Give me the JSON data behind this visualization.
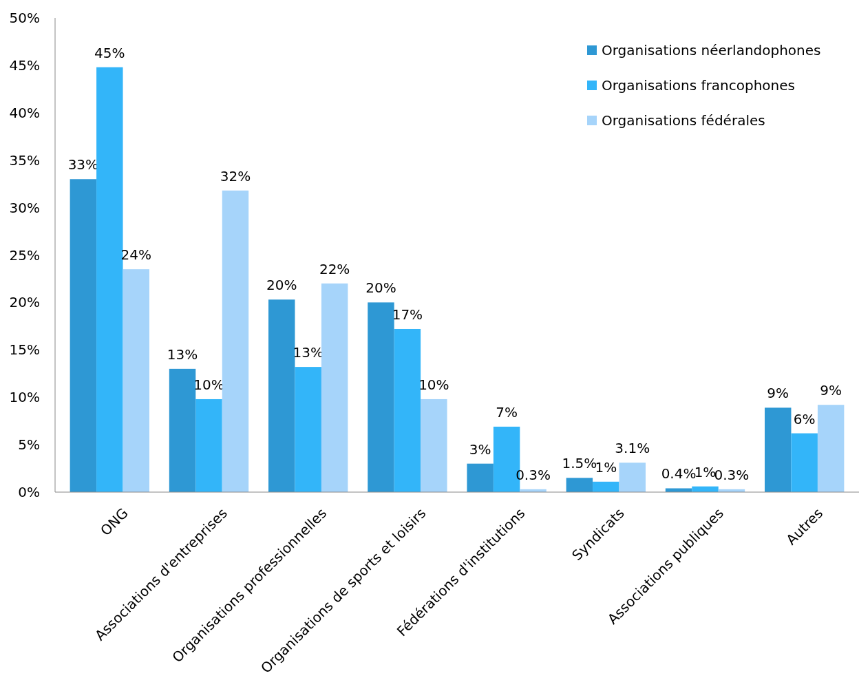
{
  "chart_data": {
    "type": "bar",
    "categories": [
      "ONG",
      "Associations d'entreprises",
      "Organisations professionnelles",
      "Organisations de sports et loisirs",
      "Fédérations d'institutions",
      "Syndicats",
      "Associations publiques",
      "Autres"
    ],
    "series": [
      {
        "name": "Organisations néerlandophones",
        "color": "#2e98d4",
        "values": [
          33,
          13,
          20.3,
          20,
          3,
          1.5,
          0.4,
          8.9
        ],
        "value_labels": [
          "33%",
          "13%",
          "20%",
          "20%",
          "3%",
          "1.5%",
          "0.4%",
          "9%"
        ]
      },
      {
        "name": "Organisations francophones",
        "color": "#33b5f9",
        "values": [
          44.8,
          9.8,
          13.2,
          17.2,
          6.9,
          1.1,
          0.6,
          6.2
        ],
        "value_labels": [
          "45%",
          "10%",
          "13%",
          "17%",
          "7%",
          "1%",
          "1%",
          "6%"
        ]
      },
      {
        "name": "Organisations fédérales",
        "color": "#a6d4fa",
        "values": [
          23.5,
          31.8,
          22,
          9.8,
          0.3,
          3.1,
          0.3,
          9.2
        ],
        "value_labels": [
          "24%",
          "32%",
          "22%",
          "10%",
          "0.3%",
          "3.1%",
          "0.3%",
          "9%"
        ]
      }
    ],
    "ylim": [
      0,
      50
    ],
    "yticks": [
      {
        "value": 0,
        "label": "0%"
      },
      {
        "value": 5,
        "label": "5%"
      },
      {
        "value": 10,
        "label": "10%"
      },
      {
        "value": 15,
        "label": "15%"
      },
      {
        "value": 20,
        "label": "20%"
      },
      {
        "value": 25,
        "label": "25%"
      },
      {
        "value": 30,
        "label": "30%"
      },
      {
        "value": 35,
        "label": "35%"
      },
      {
        "value": 40,
        "label": "40%"
      },
      {
        "value": 45,
        "label": "45%"
      },
      {
        "value": 50,
        "label": "50%"
      }
    ],
    "grid": false,
    "legend": "top right"
  }
}
